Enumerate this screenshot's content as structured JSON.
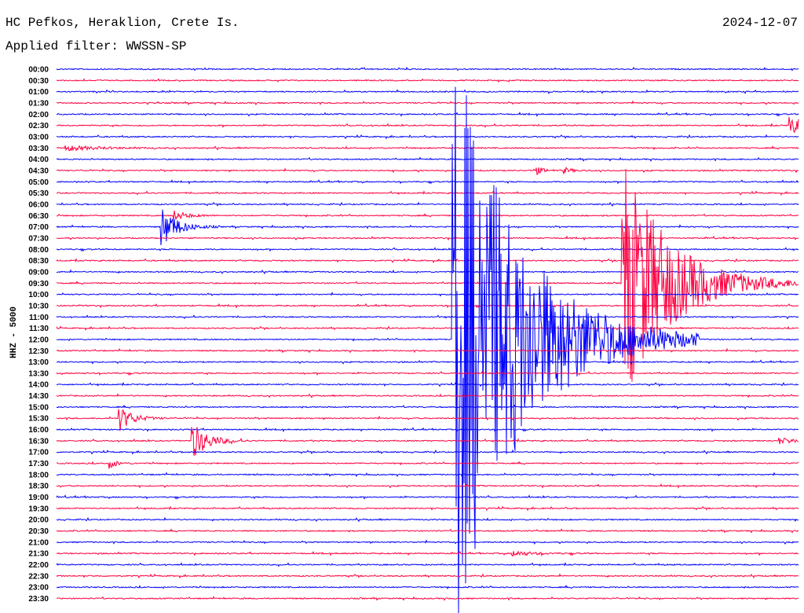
{
  "header": {
    "title": "HC Pefkos, Heraklion, Crete Is.",
    "filter": "Applied filter: WWSSN-SP",
    "date": "2024-12-07"
  },
  "chart_data": {
    "type": "line",
    "title": "HC Pefkos, Heraklion, Crete Is.",
    "ylabel": "HHZ - 5000",
    "xlabel": "",
    "minutes_per_line": 30,
    "colors": [
      "#0000ff",
      "#ff0040"
    ],
    "row_labels": [
      "00:00",
      "00:30",
      "01:00",
      "01:30",
      "02:00",
      "02:30",
      "03:00",
      "03:30",
      "04:00",
      "04:30",
      "05:00",
      "05:30",
      "06:00",
      "06:30",
      "07:00",
      "07:30",
      "08:00",
      "08:30",
      "09:00",
      "09:30",
      "10:00",
      "10:30",
      "11:00",
      "11:30",
      "12:00",
      "12:30",
      "13:00",
      "13:30",
      "14:00",
      "14:30",
      "15:00",
      "15:30",
      "16:00",
      "16:30",
      "17:00",
      "17:30",
      "18:00",
      "18:30",
      "19:00",
      "19:30",
      "20:00",
      "20:30",
      "21:00",
      "21:30",
      "22:00",
      "22:30",
      "23:00",
      "23:30"
    ],
    "events": [
      {
        "row": 24,
        "minute": 16.0,
        "amplitude": 55,
        "duration": 2.5
      },
      {
        "row": 19,
        "minute": 22.8,
        "amplitude": 24,
        "duration": 1.8
      },
      {
        "row": 5,
        "minute": 29.6,
        "amplitude": 1.5,
        "duration": 1.2
      },
      {
        "row": 14,
        "minute": 4.2,
        "amplitude": 4,
        "duration": 0.6
      },
      {
        "row": 13,
        "minute": 4.7,
        "amplitude": 1,
        "duration": 0.5
      },
      {
        "row": 31,
        "minute": 2.5,
        "amplitude": 2.5,
        "duration": 0.5
      },
      {
        "row": 33,
        "minute": 5.4,
        "amplitude": 4,
        "duration": 0.6
      },
      {
        "row": 35,
        "minute": 2.1,
        "amplitude": 1,
        "duration": 0.3
      },
      {
        "row": 9,
        "minute": 19.3,
        "amplitude": 1,
        "duration": 0.3
      },
      {
        "row": 9,
        "minute": 20.5,
        "amplitude": 0.6,
        "duration": 0.3
      },
      {
        "row": 7,
        "minute": 0.3,
        "amplitude": 0.5,
        "duration": 1.2
      },
      {
        "row": 43,
        "minute": 18.4,
        "amplitude": 0.5,
        "duration": 0.8
      },
      {
        "row": 33,
        "minute": 29.2,
        "amplitude": 0.5,
        "duration": 1
      }
    ]
  }
}
